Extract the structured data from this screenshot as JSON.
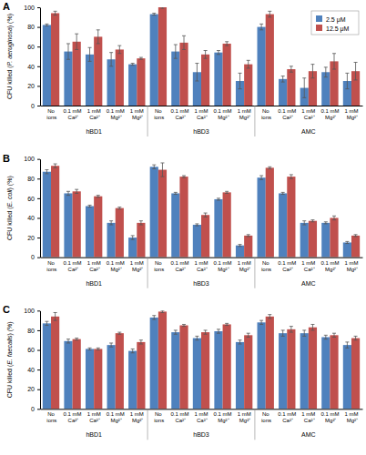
{
  "chart_data": [
    {
      "type": "bar",
      "title": "A",
      "y_label": "CFU killed (P. aeruginosa) (%)",
      "groups": [
        "hBD1",
        "hBD3",
        "AMC"
      ],
      "categories": [
        "No ions",
        "0.1 mM Ca²⁺",
        "1 mM Ca²⁺",
        "0.1 mM Mg²⁺",
        "1 mM Mg²⁺",
        "No ions",
        "0.1 mM Ca²⁺",
        "1 mM Ca²⁺",
        "0.1 mM Mg²⁺",
        "1 mM Mg²⁺",
        "No ions",
        "0.1 mM Ca²⁺",
        "1 mM Ca²⁺",
        "0.1 mM Mg²⁺",
        "1 mM Mg²⁺"
      ],
      "series": [
        {
          "name": "2.5 μM",
          "color": "#4f81bd",
          "values": [
            82,
            55,
            52,
            47,
            42,
            93,
            55,
            34,
            54,
            25,
            80,
            27,
            18,
            34,
            25
          ],
          "errors": [
            1,
            8,
            7,
            7,
            1,
            1,
            7,
            9,
            2,
            8,
            3,
            3,
            10,
            5,
            8
          ]
        },
        {
          "name": "12.5 μM",
          "color": "#c0504d",
          "values": [
            94,
            65,
            70,
            57,
            48,
            100,
            64,
            52,
            63,
            42,
            93,
            37,
            35,
            45,
            35
          ],
          "errors": [
            2,
            8,
            7,
            4,
            1,
            1,
            7,
            4,
            2,
            4,
            3,
            3,
            7,
            8,
            9
          ]
        }
      ],
      "ylim": [
        0,
        100
      ],
      "yticks": [
        0,
        20,
        40,
        60,
        80,
        100
      ],
      "legend": "top right"
    },
    {
      "type": "bar",
      "title": "B",
      "y_label": "CFU killed (E. coli) (%)",
      "groups": [
        "hBD1",
        "hBD3",
        "AMC"
      ],
      "categories": [
        "No ions",
        "0.1 mM Ca²⁺",
        "1 mM Ca²⁺",
        "0.1 mM Mg²⁺",
        "1 mM Mg²⁺",
        "No ions",
        "0.1 mM Ca²⁺",
        "1 mM Ca²⁺",
        "0.1 mM Mg²⁺",
        "1 mM Mg²⁺",
        "No ions",
        "0.1 mM Ca²⁺",
        "1 mM Ca²⁺",
        "0.1 mM Mg²⁺",
        "1 mM Mg²⁺"
      ],
      "series": [
        {
          "color": "#4f81bd",
          "values": [
            87,
            65,
            52,
            35,
            20,
            92,
            65,
            33,
            59,
            12,
            81,
            65,
            35,
            35,
            15
          ],
          "errors": [
            2,
            2,
            1,
            2,
            2,
            2,
            1,
            1,
            1,
            1,
            2,
            1,
            2,
            1,
            1
          ]
        },
        {
          "color": "#c0504d",
          "values": [
            93,
            67,
            62,
            50,
            35,
            89,
            82,
            43,
            66,
            22,
            91,
            82,
            37,
            40,
            22
          ],
          "errors": [
            2,
            2,
            1,
            1,
            2,
            7,
            1,
            2,
            1,
            1,
            1,
            2,
            1,
            2,
            1
          ]
        }
      ],
      "ylim": [
        0,
        100
      ],
      "yticks": [
        0,
        20,
        40,
        60,
        80,
        100
      ]
    },
    {
      "type": "bar",
      "title": "C",
      "y_label": "CFU killed (E. faecalis) (%)",
      "groups": [
        "hBD1",
        "hBD3",
        "AMC"
      ],
      "categories": [
        "No ions",
        "0.1 mM Ca²⁺",
        "1 mM Ca²⁺",
        "0.1 mM Mg²⁺",
        "1 mM Mg²⁺",
        "No ions",
        "0.1 mM Ca²⁺",
        "1 mM Ca²⁺",
        "0.1 mM Mg²⁺",
        "1 mM Mg²⁺",
        "No ions",
        "0.1 mM Ca²⁺",
        "1 mM Ca²⁺",
        "0.1 mM Mg²⁺",
        "1 mM Mg²⁺"
      ],
      "series": [
        {
          "color": "#4f81bd",
          "values": [
            87,
            69,
            61,
            65,
            59,
            93,
            78,
            72,
            79,
            68,
            88,
            77,
            77,
            73,
            65
          ],
          "errors": [
            2,
            2,
            1,
            2,
            2,
            2,
            2,
            2,
            2,
            2,
            2,
            3,
            3,
            2,
            3
          ]
        },
        {
          "color": "#c0504d",
          "values": [
            94,
            71,
            61,
            77,
            68,
            99,
            85,
            78,
            86,
            75,
            94,
            81,
            83,
            75,
            72
          ],
          "errors": [
            4,
            1,
            1,
            1,
            2,
            1,
            1,
            2,
            1,
            2,
            2,
            3,
            3,
            2,
            2
          ]
        }
      ],
      "ylim": [
        0,
        100
      ],
      "yticks": [
        0,
        20,
        40,
        60,
        80,
        100
      ]
    }
  ]
}
